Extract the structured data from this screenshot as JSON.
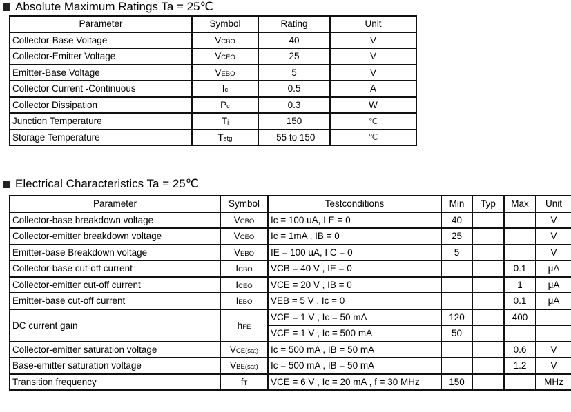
{
  "abs_max": {
    "title": "Absolute Maximum Ratings Ta = 25℃",
    "headers": [
      "Parameter",
      "Symbol",
      "Rating",
      "Unit"
    ],
    "rows": [
      {
        "parameter": "Collector-Base Voltage",
        "sym": "V",
        "sub": "CBO",
        "rating": "40",
        "unit": "V"
      },
      {
        "parameter": "Collector-Emitter Voltage",
        "sym": "V",
        "sub": "CEO",
        "rating": "25",
        "unit": "V"
      },
      {
        "parameter": "Emitter-Base Voltage",
        "sym": "V",
        "sub": "EBO",
        "rating": "5",
        "unit": "V"
      },
      {
        "parameter": "Collector Current -Continuous",
        "sym": "I",
        "sub": "c",
        "rating": "0.5",
        "unit": "A"
      },
      {
        "parameter": "Collector Dissipation",
        "sym": "P",
        "sub": "c",
        "rating": "0.3",
        "unit": "W"
      },
      {
        "parameter": "Junction Temperature",
        "sym": "T",
        "sub": "j",
        "rating": "150",
        "unit": "℃"
      },
      {
        "parameter": "Storage Temperature",
        "sym": "T",
        "sub": "stg",
        "rating": "-55 to 150",
        "unit": "℃"
      }
    ]
  },
  "elec": {
    "title": "Electrical Characteristics Ta = 25℃",
    "headers": [
      "Parameter",
      "Symbol",
      "Testconditions",
      "Min",
      "Typ",
      "Max",
      "Unit"
    ],
    "rows": [
      {
        "parameter": "Collector-base breakdown voltage",
        "sym": "V",
        "sub": "CBO",
        "cond": [
          "Ic = 100 uA, I E = 0"
        ],
        "min": [
          "40"
        ],
        "typ": [
          ""
        ],
        "max": [
          ""
        ],
        "unit": [
          "V"
        ]
      },
      {
        "parameter": "Collector-emitter breakdown voltage",
        "sym": "V",
        "sub": "CEO",
        "cond": [
          "Ic = 1mA , IB = 0"
        ],
        "min": [
          "25"
        ],
        "typ": [
          ""
        ],
        "max": [
          ""
        ],
        "unit": [
          "V"
        ]
      },
      {
        "parameter": "Emitter-base Breakdown voltage",
        "sym": "V",
        "sub": "EBO",
        "cond": [
          "IE = 100 uA, I C = 0"
        ],
        "min": [
          "5"
        ],
        "typ": [
          ""
        ],
        "max": [
          ""
        ],
        "unit": [
          "V"
        ]
      },
      {
        "parameter": "Collector-base cut-off current",
        "sym": "I",
        "sub": "CBO",
        "cond": [
          "VCB = 40 V , IE = 0"
        ],
        "min": [
          ""
        ],
        "typ": [
          ""
        ],
        "max": [
          "0.1"
        ],
        "unit": [
          "μA"
        ]
      },
      {
        "parameter": "Collector-emitter cut-off current",
        "sym": "I",
        "sub": "CEO",
        "cond": [
          "VCE = 20 V , IB = 0"
        ],
        "min": [
          ""
        ],
        "typ": [
          ""
        ],
        "max": [
          "1"
        ],
        "unit": [
          "μA"
        ]
      },
      {
        "parameter": "Emitter-base cut-off current",
        "sym": "I",
        "sub": "EBO",
        "cond": [
          "VEB = 5 V , Ic = 0"
        ],
        "min": [
          ""
        ],
        "typ": [
          ""
        ],
        "max": [
          "0.1"
        ],
        "unit": [
          "μA"
        ]
      },
      {
        "parameter": "DC current gain",
        "sym": "h",
        "sub": "FE",
        "cond": [
          "VCE = 1 V , Ic = 50 mA",
          "VCE = 1 V , Ic = 500 mA"
        ],
        "min": [
          "120",
          "50"
        ],
        "typ": [
          "",
          ""
        ],
        "max": [
          "400",
          ""
        ],
        "unit": [
          "",
          ""
        ]
      },
      {
        "parameter": "Collector-emitter saturation voltage",
        "sym": "V",
        "sub": "CE(sat)",
        "cond": [
          "Ic = 500 mA , IB = 50 mA"
        ],
        "min": [
          ""
        ],
        "typ": [
          ""
        ],
        "max": [
          "0.6"
        ],
        "unit": [
          "V"
        ]
      },
      {
        "parameter": "Base-emitter saturation voltage",
        "sym": "V",
        "sub": "BE(sat)",
        "cond": [
          "Ic = 500 mA , IB = 50 mA"
        ],
        "min": [
          ""
        ],
        "typ": [
          ""
        ],
        "max": [
          "1.2"
        ],
        "unit": [
          "V"
        ]
      },
      {
        "parameter": "Transition frequency",
        "sym": "f",
        "sub": "T",
        "cond": [
          "VCE = 6 V , Ic = 20 mA , f = 30 MHz"
        ],
        "min": [
          "150"
        ],
        "typ": [
          ""
        ],
        "max": [
          ""
        ],
        "unit": [
          "MHz"
        ]
      }
    ]
  }
}
